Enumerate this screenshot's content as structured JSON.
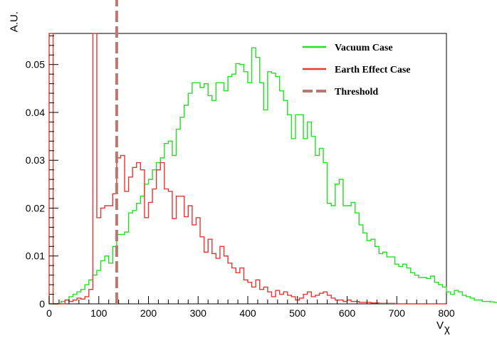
{
  "chart_data": {
    "type": "histogram",
    "xlabel": "V",
    "xlabel_sub": "χ",
    "ylabel": "A.U.",
    "xlim": [
      0,
      800
    ],
    "ylim": [
      0,
      0.0565
    ],
    "xticks": [
      0,
      100,
      200,
      300,
      400,
      500,
      600,
      700,
      800
    ],
    "xtick_labels": [
      "0",
      "100",
      "200",
      "300",
      "400",
      "500",
      "600",
      "700",
      "800"
    ],
    "yticks": [
      0,
      0.01,
      0.02,
      0.03,
      0.04,
      0.05
    ],
    "ytick_labels": [
      "0",
      "0.01",
      "0.02",
      "0.03",
      "0.04",
      "0.05"
    ],
    "grid": false,
    "legend_position": "top-right",
    "bin_width": 8,
    "series": [
      {
        "name": "Vacuum Case",
        "color": "#22e022",
        "style": "step",
        "values": [
          0,
          0,
          0,
          0.0005,
          0.0008,
          0.0015,
          0.002,
          0.0025,
          0.003,
          0.004,
          0.005,
          0.006,
          0.007,
          0.009,
          0.01,
          0.0085,
          0.012,
          0.0145,
          0.0145,
          0.015,
          0.019,
          0.0195,
          0.021,
          0.0225,
          0.025,
          0.026,
          0.028,
          0.0295,
          0.0305,
          0.0335,
          0.034,
          0.031,
          0.0365,
          0.039,
          0.0415,
          0.044,
          0.0462,
          0.0462,
          0.0452,
          0.046,
          0.0435,
          0.0425,
          0.0462,
          0.0462,
          0.0445,
          0.0475,
          0.048,
          0.0502,
          0.05,
          0.0485,
          0.0462,
          0.0535,
          0.0515,
          0.0462,
          0.0405,
          0.0485,
          0.0482,
          0.0475,
          0.0445,
          0.0425,
          0.0395,
          0.0345,
          0.0395,
          0.0395,
          0.0345,
          0.038,
          0.035,
          0.031,
          0.0325,
          0.0295,
          0.021,
          0.0205,
          0.025,
          0.026,
          0.0205,
          0.0205,
          0.0212,
          0.019,
          0.0165,
          0.0148,
          0.0132,
          0.0135,
          0.012,
          0.0105,
          0.0108,
          0.0098,
          0.0098,
          0.0083,
          0.0078,
          0.0083,
          0.0075,
          0.0065,
          0.006,
          0.0055,
          0.0055,
          0.0053,
          0.0058,
          0.0045,
          0.004,
          0.0035,
          0.0025,
          0.002,
          0.0028,
          0.0025,
          0.0018,
          0.0015,
          0.0012,
          0.0008,
          0.0008,
          0.0005,
          0.0005,
          0.0004,
          0.0003,
          0.0002,
          0.0002,
          0.0002,
          0.0001,
          0.0001,
          0.0001,
          0.0001,
          0.0001,
          0,
          0,
          0,
          0,
          0,
          0,
          0,
          0,
          0,
          0,
          0,
          0,
          0,
          0,
          0,
          0,
          0,
          0,
          0,
          0,
          0,
          0,
          0,
          0,
          0,
          0,
          0,
          0,
          0,
          0,
          0,
          0,
          0,
          0,
          0,
          0,
          0,
          0,
          0,
          0,
          0,
          0,
          0,
          0,
          0,
          0,
          0,
          0,
          0,
          0,
          0,
          0,
          0,
          0,
          0,
          0,
          0,
          0,
          0,
          0,
          0,
          0,
          0,
          0,
          0,
          0,
          0,
          0,
          0,
          0,
          0,
          0,
          0,
          0,
          0,
          0,
          0,
          0,
          0,
          0,
          0,
          0,
          0,
          0,
          0,
          0,
          0,
          0,
          0,
          0
        ]
      },
      {
        "name": "Earth Effect Case",
        "color": "#ee3333",
        "style": "step",
        "values": [
          0.058,
          0,
          0,
          0,
          0.0008,
          0.0005,
          0.0008,
          0.0012,
          0.001,
          0.0015,
          0.003,
          0.058,
          0.018,
          0.02,
          0.0205,
          0.0205,
          0.023,
          0.0305,
          0.031,
          0.0235,
          0.0265,
          0.0285,
          0.0295,
          0.028,
          0.018,
          0.0212,
          0.024,
          0.028,
          0.0295,
          0.024,
          0.0235,
          0.0178,
          0.0225,
          0.0225,
          0.0182,
          0.0205,
          0.0165,
          0.018,
          0.014,
          0.0108,
          0.0135,
          0.0105,
          0.0095,
          0.012,
          0.01,
          0.0085,
          0.0075,
          0.0065,
          0.0075,
          0.005,
          0.0045,
          0.0035,
          0.005,
          0.003,
          0.0035,
          0.0025,
          0.0015,
          0.0028,
          0.002,
          0.0025,
          0.0018,
          0.0015,
          0.0008,
          0.0012,
          0.002,
          0.0025,
          0.0015,
          0.0018,
          0.0022,
          0.0025,
          0.0018,
          0.0012,
          0.0008,
          0.0008,
          0.0005,
          0.0008,
          0.0005,
          0.0005,
          0.0003,
          0.0003,
          0.0003,
          0.0002,
          0.0002,
          0.0001,
          0.0001,
          0.0001,
          0.0001,
          0,
          0,
          0,
          0,
          0,
          0,
          0,
          0,
          0,
          0,
          0,
          0,
          0
        ]
      },
      {
        "name": "Threshold",
        "color": "#b87a70",
        "style": "dashed-vertical",
        "x": 136
      }
    ]
  }
}
